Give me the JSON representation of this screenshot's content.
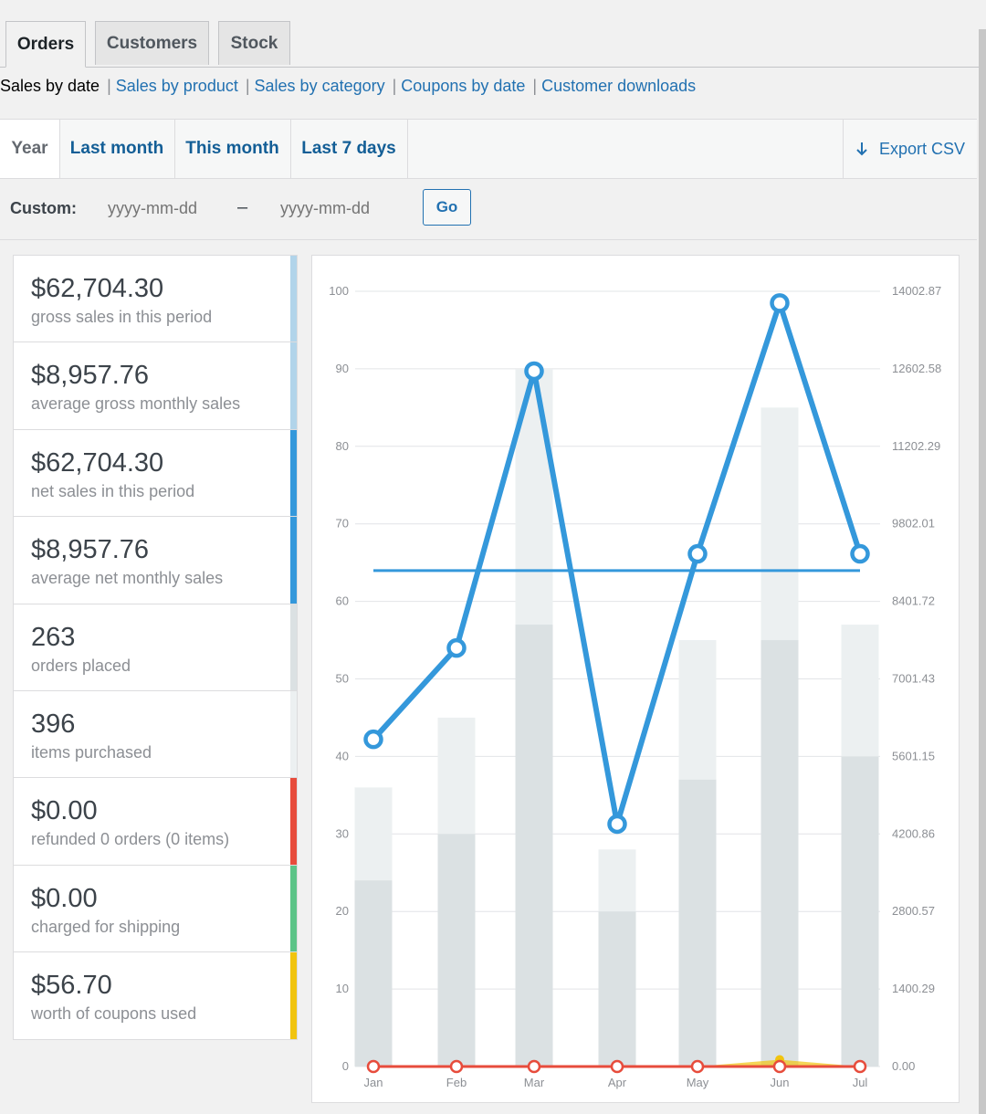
{
  "tabs": [
    {
      "label": "Orders",
      "active": true
    },
    {
      "label": "Customers",
      "active": false
    },
    {
      "label": "Stock",
      "active": false
    }
  ],
  "report_links": {
    "current": "Sales by date",
    "items": [
      "Sales by product",
      "Sales by category",
      "Coupons by date",
      "Customer downloads"
    ]
  },
  "ranges": {
    "items": [
      "Year",
      "Last month",
      "This month",
      "Last 7 days"
    ],
    "active": "Year",
    "export_label": "Export CSV",
    "export_icon": "download-arrow-icon",
    "custom_label": "Custom:",
    "start_placeholder": "yyyy-mm-dd",
    "separator": "–",
    "end_placeholder": "yyyy-mm-dd",
    "go_label": "Go"
  },
  "legend": [
    {
      "amount": "$62,704.30",
      "desc": "gross sales in this period",
      "color": "#b1d4ea"
    },
    {
      "amount": "$8,957.76",
      "desc": "average gross monthly sales",
      "color": "#b1d4ea"
    },
    {
      "amount": "$62,704.30",
      "desc": "net sales in this period",
      "color": "#3498db"
    },
    {
      "amount": "$8,957.76",
      "desc": "average net monthly sales",
      "color": "#3498db"
    },
    {
      "amount": "263",
      "desc": "orders placed",
      "color": "#dbe1e3"
    },
    {
      "amount": "396",
      "desc": "items purchased",
      "color": "#ecf0f1"
    },
    {
      "amount": "$0.00",
      "desc": "refunded 0 orders (0 items)",
      "color": "#e74c3c"
    },
    {
      "amount": "$0.00",
      "desc": "charged for shipping",
      "color": "#5cc488"
    },
    {
      "amount": "$56.70",
      "desc": "worth of coupons used",
      "color": "#f1c40f"
    }
  ],
  "chart_data": {
    "type": "bar",
    "categories": [
      "Jan",
      "Feb",
      "Mar",
      "Apr",
      "May",
      "Jun",
      "Jul"
    ],
    "y_left_ticks": [
      "0",
      "10",
      "20",
      "30",
      "40",
      "50",
      "60",
      "70",
      "80",
      "90",
      "100"
    ],
    "y_right_ticks": [
      "0.00",
      "1400.29",
      "2800.57",
      "4200.86",
      "5601.15",
      "7001.43",
      "8401.72",
      "9802.01",
      "11202.29",
      "12602.58",
      "14002.87"
    ],
    "ylim_left": [
      0,
      100
    ],
    "ylim_right": [
      0,
      14002.87
    ],
    "grid": true,
    "series": [
      {
        "name": "orders placed",
        "kind": "bar",
        "color": "#dbe1e3",
        "values": [
          24,
          30,
          57,
          20,
          37,
          55,
          40
        ]
      },
      {
        "name": "items purchased",
        "kind": "bar",
        "color": "#ecf0f1",
        "values": [
          36,
          45,
          90,
          28,
          55,
          85,
          57
        ]
      },
      {
        "name": "net sales",
        "kind": "line",
        "color": "#3498db",
        "values": [
          5910,
          7560,
          12560,
          4380,
          9260,
          13790,
          9260
        ]
      },
      {
        "name": "average net monthly sales",
        "kind": "hline",
        "color": "#3498db",
        "value": 8957.76
      },
      {
        "name": "refunds",
        "kind": "line",
        "color": "#e74c3c",
        "values": [
          0,
          0,
          0,
          0,
          0,
          0,
          0
        ]
      },
      {
        "name": "coupons",
        "kind": "area",
        "color": "#f1c40f",
        "values": [
          0,
          0,
          0,
          0,
          0,
          56.7,
          0
        ]
      }
    ]
  }
}
